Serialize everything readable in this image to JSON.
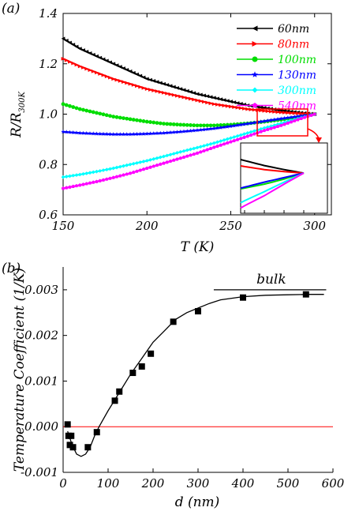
{
  "chart_data": [
    {
      "panel_label": "(a)",
      "type": "line",
      "xlabel": "T (K)",
      "ylabel": "R/R",
      "ylabel_sub": "300K",
      "xlim": [
        150,
        310
      ],
      "ylim": [
        0.6,
        1.4
      ],
      "xticks": [
        150,
        200,
        250,
        300
      ],
      "yticks": [
        0.6,
        0.8,
        1.0,
        1.2,
        1.4
      ],
      "legend_position": "top-right",
      "x": [
        150,
        160,
        170,
        180,
        190,
        200,
        210,
        220,
        230,
        240,
        250,
        260,
        270,
        280,
        290,
        300
      ],
      "series": [
        {
          "name": "60nm",
          "color": "#000000",
          "marker": "left-triangle",
          "values": [
            1.3,
            1.26,
            1.23,
            1.2,
            1.17,
            1.14,
            1.12,
            1.1,
            1.08,
            1.065,
            1.05,
            1.035,
            1.025,
            1.015,
            1.007,
            1.0
          ]
        },
        {
          "name": "80nm",
          "color": "#ff0000",
          "marker": "right-triangle",
          "values": [
            1.22,
            1.19,
            1.165,
            1.14,
            1.12,
            1.1,
            1.085,
            1.07,
            1.055,
            1.04,
            1.03,
            1.02,
            1.013,
            1.007,
            1.003,
            1.0
          ]
        },
        {
          "name": "100nm",
          "color": "#00dd00",
          "marker": "circle",
          "values": [
            1.04,
            1.02,
            1.005,
            0.99,
            0.98,
            0.97,
            0.962,
            0.958,
            0.955,
            0.955,
            0.958,
            0.963,
            0.97,
            0.978,
            0.988,
            1.0
          ]
        },
        {
          "name": "130nm",
          "color": "#0000ff",
          "marker": "star",
          "values": [
            0.93,
            0.925,
            0.922,
            0.92,
            0.92,
            0.922,
            0.925,
            0.93,
            0.936,
            0.943,
            0.952,
            0.962,
            0.972,
            0.982,
            0.991,
            1.0
          ]
        },
        {
          "name": "300nm",
          "color": "#00ffff",
          "marker": "diamond",
          "values": [
            0.75,
            0.76,
            0.772,
            0.785,
            0.8,
            0.815,
            0.832,
            0.85,
            0.867,
            0.885,
            0.905,
            0.925,
            0.945,
            0.963,
            0.982,
            1.0
          ]
        },
        {
          "name": "540nm",
          "color": "#ff00ff",
          "marker": "pentagon",
          "values": [
            0.705,
            0.718,
            0.732,
            0.748,
            0.765,
            0.785,
            0.805,
            0.825,
            0.845,
            0.868,
            0.89,
            0.912,
            0.935,
            0.955,
            0.978,
            1.0
          ]
        }
      ]
    },
    {
      "panel_label": "(b)",
      "type": "scatter",
      "xlabel": "d (nm)",
      "ylabel": "Temperature Coefficient (1/K)",
      "xlim": [
        0,
        600
      ],
      "ylim": [
        -0.001,
        0.0035
      ],
      "xticks": [
        0,
        100,
        200,
        300,
        400,
        500,
        600
      ],
      "yticks": [
        -0.001,
        0.0,
        0.001,
        0.002,
        0.003
      ],
      "ytick_labels": [
        "-0.001",
        "0.000",
        "0.001",
        "0.002",
        "0.003"
      ],
      "annotation": "bulk",
      "bulk_level": 0.003,
      "zero_line_color": "#ff0000",
      "points": {
        "x": [
          10,
          12,
          15,
          18,
          22,
          55,
          75,
          115,
          125,
          155,
          175,
          195,
          245,
          300,
          400,
          540
        ],
        "y": [
          5e-05,
          -0.0002,
          -0.0004,
          -0.0002,
          -0.00045,
          -0.00045,
          -0.00012,
          0.00057,
          0.00077,
          0.00118,
          0.00132,
          0.0016,
          0.0023,
          0.00253,
          0.00283,
          0.0029
        ]
      },
      "fit": {
        "x": [
          10,
          20,
          30,
          40,
          50,
          60,
          70,
          80,
          100,
          125,
          150,
          175,
          200,
          225,
          250,
          275,
          300,
          325,
          350,
          400,
          450,
          500,
          550,
          580
        ],
        "y": [
          -0.0001,
          -0.0004,
          -0.0006,
          -0.00065,
          -0.0006,
          -0.00045,
          -0.0002,
          0.0,
          0.00035,
          0.00075,
          0.00115,
          0.0015,
          0.00185,
          0.0021,
          0.00235,
          0.0025,
          0.0026,
          0.0027,
          0.00278,
          0.00285,
          0.00288,
          0.00289,
          0.0029,
          0.0029
        ]
      }
    }
  ]
}
